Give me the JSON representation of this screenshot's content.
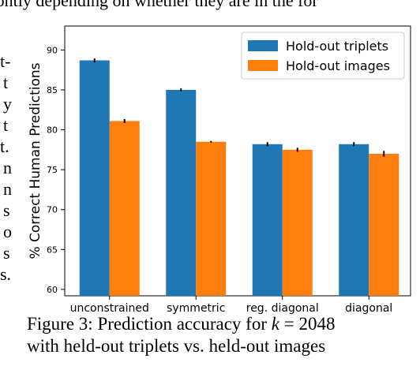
{
  "page_text": {
    "top_fragment": "frontly depending on whether they are in the for",
    "left_column": [
      "t-",
      "t",
      "y",
      "t",
      "t.",
      "n",
      "n",
      "s",
      "o",
      "s",
      "s."
    ]
  },
  "caption": {
    "line1_prefix": "Figure 3: Prediction accuracy for ",
    "math_var": "k",
    "math_eq": " = ",
    "math_val": "2048",
    "line2": "with held-out triplets vs. held-out images"
  },
  "chart_data": {
    "type": "bar",
    "categories": [
      "unconstrained",
      "symmetric",
      "reg. diagonal",
      "diagonal"
    ],
    "series": [
      {
        "name": "Hold-out triplets",
        "values": [
          88.7,
          85.0,
          78.2,
          78.2
        ],
        "errors": [
          0.25,
          0.2,
          0.25,
          0.25
        ],
        "color": "#1f77b4"
      },
      {
        "name": "Hold-out images",
        "values": [
          81.1,
          78.5,
          77.5,
          77.0
        ],
        "errors": [
          0.25,
          0.1,
          0.25,
          0.35
        ],
        "color": "#ff7f0e"
      }
    ],
    "ylabel": "% Correct Human Predictions",
    "xlabel": "",
    "ylim": [
      59.2,
      93.0
    ],
    "yticks": [
      60,
      65,
      70,
      75,
      80,
      85,
      90
    ],
    "legend_position": "top-right",
    "grid": false
  }
}
